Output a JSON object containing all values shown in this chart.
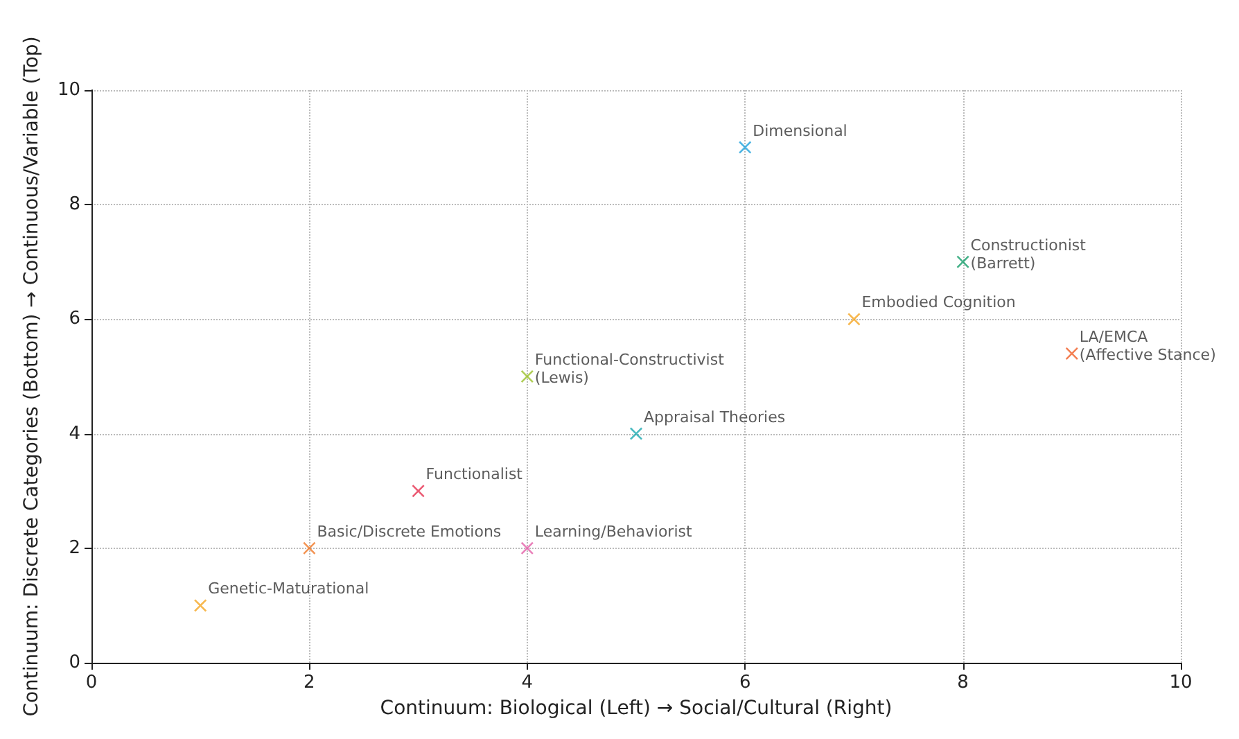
{
  "chart_data": {
    "type": "scatter",
    "xlabel": "Continuum: Biological (Left) → Social/Cultural (Right)",
    "ylabel": "Continuum: Discrete Categories (Bottom) → Continuous/Variable (Top)",
    "xlim": [
      0,
      10
    ],
    "ylim": [
      0,
      10
    ],
    "xticks": [
      0,
      2,
      4,
      6,
      8,
      10
    ],
    "yticks": [
      0,
      2,
      4,
      6,
      8,
      10
    ],
    "grid": true,
    "legend": false,
    "marker": "cross",
    "series": [
      {
        "name": "Genetic-Maturational",
        "color": "#f5a623",
        "x": [
          1
        ],
        "values": [
          1
        ]
      },
      {
        "name": "Basic/Discrete Emotions",
        "color": "#f07a2a",
        "x": [
          2
        ],
        "values": [
          2
        ]
      },
      {
        "name": "Functionalist",
        "color": "#e6304f",
        "x": [
          3
        ],
        "values": [
          3
        ]
      },
      {
        "name": "Learning/Behaviorist",
        "color": "#e45fa8",
        "x": [
          4
        ],
        "values": [
          2
        ]
      },
      {
        "name": "Functional-Constructivist\n(Lewis)",
        "color": "#9bc02a",
        "x": [
          4
        ],
        "values": [
          5
        ]
      },
      {
        "name": "Appraisal Theories",
        "color": "#1aa9b0",
        "x": [
          5
        ],
        "values": [
          4
        ]
      },
      {
        "name": "Dimensional",
        "color": "#21a3dc",
        "x": [
          6
        ],
        "values": [
          9
        ]
      },
      {
        "name": "Embodied Cognition",
        "color": "#f5a623",
        "x": [
          7
        ],
        "values": [
          6
        ]
      },
      {
        "name": "Constructionist\n(Barrett)",
        "color": "#159e6a",
        "x": [
          8
        ],
        "values": [
          7
        ]
      },
      {
        "name": "LA/EMCA\n(Affective Stance)",
        "color": "#f0622a",
        "x": [
          9
        ],
        "values": [
          5.4
        ]
      }
    ]
  }
}
